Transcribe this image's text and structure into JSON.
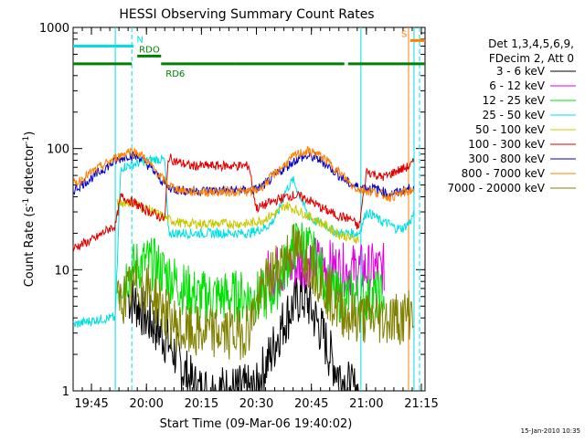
{
  "chart_data": {
    "type": "line",
    "title": "HESSI Observing Summary Count Rates",
    "xlabel": "Start Time (09-Mar-06 19:40:02)",
    "ylabel": "Count Rate (s⁻¹ detector⁻¹)",
    "ylabel_parts": [
      "Count Rate (s",
      "-1",
      " detector",
      "-1",
      ")"
    ],
    "x_unit": "minutes after 19:40:02",
    "xlim": [
      0,
      96
    ],
    "ylim": [
      1,
      1000
    ],
    "yscale": "log",
    "grid": false,
    "x_ticks": [
      {
        "x": 5,
        "label": "19:45"
      },
      {
        "x": 20,
        "label": "20:00"
      },
      {
        "x": 35,
        "label": "20:15"
      },
      {
        "x": 50,
        "label": "20:30"
      },
      {
        "x": 65,
        "label": "20:45"
      },
      {
        "x": 80,
        "label": "21:00"
      },
      {
        "x": 95,
        "label": "21:15"
      }
    ],
    "y_ticks": [
      {
        "y": 1,
        "label": "1"
      },
      {
        "y": 10,
        "label": "10"
      },
      {
        "y": 100,
        "label": "100"
      },
      {
        "y": 1000,
        "label": "1000"
      }
    ],
    "legend_position": "right",
    "legend_header": [
      "Det 1,3,4,5,6,9,",
      "FDecim 2, Att 0"
    ],
    "series": [
      {
        "name": "3 - 6 keV",
        "color": "#000000",
        "x": [
          15,
          18,
          20,
          22,
          24,
          26,
          28,
          30,
          32,
          34,
          36,
          38,
          40,
          42,
          44,
          46,
          48,
          50,
          51,
          52,
          54,
          56,
          58,
          60,
          62,
          64,
          66,
          68,
          70,
          72,
          74,
          76,
          78
        ],
        "y": [
          6,
          5,
          4,
          3.5,
          3,
          2.5,
          2,
          1.5,
          1.2,
          1,
          1,
          1,
          1,
          1,
          1,
          1,
          1,
          1,
          1.3,
          1.5,
          2,
          3,
          4,
          5,
          6,
          5.5,
          4,
          3,
          2,
          1.5,
          1.2,
          1,
          1
        ]
      },
      {
        "name": "6 - 12 keV",
        "color": "#e000e0",
        "x": [
          53,
          55,
          57,
          59,
          61,
          63,
          65,
          67,
          69,
          71,
          73,
          75,
          77,
          79,
          81,
          83,
          85
        ],
        "y": [
          9,
          9.5,
          10,
          10.5,
          11,
          11.5,
          12,
          11.5,
          11,
          10.5,
          10,
          10,
          10,
          10,
          10,
          10,
          10
        ]
      },
      {
        "name": "12 - 25 keV",
        "color": "#00e000",
        "x": [
          12,
          14,
          16,
          18,
          20,
          22,
          24,
          26,
          28,
          30,
          32,
          34,
          36,
          38,
          40,
          42,
          44,
          46,
          48,
          50,
          52,
          54,
          56,
          58,
          60,
          62,
          64,
          66,
          68,
          70,
          72,
          74,
          76,
          78,
          80,
          82,
          84,
          85
        ],
        "y": [
          7,
          9,
          10,
          11,
          11.5,
          11,
          10,
          9,
          8,
          7,
          6.5,
          6,
          6,
          6,
          6,
          6,
          6,
          6,
          6,
          6,
          6,
          6.5,
          8,
          11,
          15,
          17,
          15,
          12,
          9,
          7,
          6,
          6,
          6,
          6,
          6,
          6,
          6,
          6
        ]
      },
      {
        "name": "25 - 50 keV",
        "color": "#00e0e0",
        "x": [
          0,
          5,
          10,
          11.5,
          13,
          15,
          17,
          19,
          21,
          23,
          25,
          26,
          28,
          30,
          32,
          34,
          36,
          38,
          40,
          42,
          44,
          46,
          48,
          50,
          52,
          54,
          56,
          58,
          60,
          62,
          64,
          66,
          68,
          70,
          72,
          74,
          76,
          78,
          80,
          82,
          84,
          86,
          88,
          90,
          92,
          93
        ],
        "y": [
          3.5,
          3.8,
          4,
          4,
          70,
          72,
          75,
          78,
          80,
          82,
          80,
          20,
          20,
          20,
          20,
          20,
          20,
          20,
          20,
          20,
          20,
          20,
          20,
          21,
          22,
          24,
          30,
          45,
          55,
          40,
          28,
          25,
          24,
          22,
          20,
          20,
          20,
          20,
          30,
          28,
          25,
          24,
          22,
          22,
          25,
          30
        ]
      },
      {
        "name": "50 - 100 keV",
        "color": "#c8c800",
        "x": [
          12,
          14,
          16,
          18,
          20,
          22,
          24,
          26,
          28,
          30,
          32,
          34,
          36,
          38,
          40,
          42,
          44,
          46,
          48,
          50,
          52,
          54,
          56,
          58,
          60,
          62,
          64,
          66,
          68,
          70,
          72,
          74,
          76,
          78
        ],
        "y": [
          35,
          36,
          36,
          34,
          32,
          30,
          28,
          26,
          25,
          24,
          24,
          24,
          24,
          24,
          24,
          24,
          24,
          24,
          24,
          25,
          26,
          28,
          30,
          34,
          32,
          30,
          28,
          26,
          24,
          22,
          20,
          19,
          18,
          18
        ]
      },
      {
        "name": "100 - 300 keV",
        "color": "#e00000",
        "x": [
          0,
          2,
          4,
          6,
          8,
          10,
          11.5,
          13,
          15,
          17,
          19,
          21,
          23,
          25,
          26,
          28,
          30,
          32,
          34,
          36,
          38,
          40,
          42,
          44,
          46,
          48,
          50,
          52,
          54,
          56,
          58,
          60,
          62,
          64,
          66,
          68,
          70,
          72,
          74,
          76,
          78,
          80,
          82,
          84,
          86,
          88,
          90,
          92,
          93
        ],
        "y": [
          15,
          16,
          17,
          18,
          20,
          22,
          23,
          40,
          38,
          35,
          32,
          30,
          28,
          26,
          85,
          78,
          75,
          72,
          72,
          72,
          72,
          72,
          72,
          72,
          72,
          72,
          32,
          34,
          36,
          38,
          40,
          41,
          40,
          38,
          35,
          32,
          30,
          28,
          27,
          26,
          22,
          65,
          62,
          58,
          60,
          65,
          68,
          72,
          78
        ]
      },
      {
        "name": "300 - 800 keV",
        "color": "#0000cc",
        "x": [
          0,
          3,
          6,
          9,
          12,
          15,
          18,
          20,
          22,
          24,
          26,
          28,
          30,
          32,
          34,
          36,
          38,
          40,
          42,
          44,
          46,
          48,
          50,
          52,
          54,
          56,
          58,
          60,
          62,
          64,
          66,
          68,
          70,
          72,
          74,
          76,
          78,
          80,
          82,
          84,
          86,
          88,
          90,
          92,
          93
        ],
        "y": [
          45,
          52,
          60,
          70,
          80,
          88,
          85,
          75,
          65,
          55,
          48,
          46,
          45,
          45,
          45,
          45,
          45,
          45,
          45,
          45,
          45,
          45,
          46,
          50,
          56,
          63,
          70,
          78,
          84,
          86,
          84,
          78,
          70,
          62,
          55,
          50,
          48,
          47,
          47,
          45,
          42,
          43,
          45,
          47,
          48
        ]
      },
      {
        "name": "800 - 7000 keV",
        "color": "#ff8000",
        "x": [
          0,
          3,
          6,
          9,
          12,
          15,
          18,
          20,
          22,
          24,
          26,
          28,
          30,
          32,
          34,
          36,
          38,
          40,
          42,
          44,
          46,
          48,
          50,
          52,
          54,
          56,
          58,
          60,
          62,
          64,
          66,
          68,
          70,
          72,
          74,
          76,
          78,
          80,
          82,
          84,
          86,
          88,
          90,
          92,
          93
        ],
        "y": [
          50,
          58,
          66,
          75,
          85,
          95,
          92,
          80,
          68,
          58,
          50,
          47,
          45,
          44,
          44,
          44,
          44,
          44,
          44,
          44,
          44,
          44,
          45,
          50,
          58,
          66,
          75,
          85,
          92,
          95,
          92,
          85,
          75,
          66,
          58,
          50,
          46,
          45,
          44,
          42,
          40,
          41,
          43,
          45,
          46
        ]
      },
      {
        "name": "7000 - 20000 keV",
        "color": "#808000",
        "x": [
          12,
          14,
          16,
          18,
          20,
          22,
          24,
          26,
          28,
          30,
          32,
          34,
          36,
          38,
          40,
          42,
          44,
          46,
          48,
          50,
          52,
          54,
          56,
          58,
          60,
          62,
          64,
          66,
          68,
          70,
          72,
          74,
          76,
          78,
          80,
          82,
          84,
          86,
          88,
          90,
          92,
          93
        ],
        "y": [
          5,
          6,
          7,
          7.5,
          7,
          6,
          5,
          4,
          3.5,
          3,
          3,
          3,
          3,
          3,
          3,
          3,
          3,
          3,
          3.5,
          5,
          7,
          9,
          11,
          13,
          15,
          14,
          12,
          10,
          8,
          6,
          5,
          4.5,
          4,
          4,
          4,
          4,
          4,
          4,
          4,
          4,
          4.5,
          5
        ]
      }
    ],
    "annotations": [
      {
        "label": "N",
        "color": "#00e0e0",
        "x": [
          0,
          16.5
        ],
        "y": 700
      },
      {
        "label": "RDO",
        "color": "#008000",
        "x": [
          17.5,
          24
        ],
        "y": 580
      },
      {
        "label": "RD6",
        "color": "#008000",
        "x": [
          0,
          96
        ],
        "y": 500,
        "segments": [
          [
            0,
            16
          ],
          [
            24,
            44
          ],
          [
            44,
            74
          ],
          [
            75,
            96
          ]
        ]
      },
      {
        "label": "S",
        "color": "#ff8000",
        "x": [
          92,
          96
        ],
        "y": 780
      }
    ],
    "vertical_lines": [
      {
        "x": 11.5,
        "color": "#00e0e0",
        "style": "solid"
      },
      {
        "x": 16,
        "color": "#00e0e0",
        "style": "dashed"
      },
      {
        "x": 78.5,
        "color": "#00e0e0",
        "style": "solid"
      },
      {
        "x": 91.5,
        "color": "#ff8000",
        "style": "solid"
      },
      {
        "x": 93,
        "color": "#00e0e0",
        "style": "solid"
      },
      {
        "x": 94.5,
        "color": "#00e0e0",
        "style": "dashed"
      }
    ]
  },
  "footer_timestamp": "15-Jan-2010 10:35"
}
